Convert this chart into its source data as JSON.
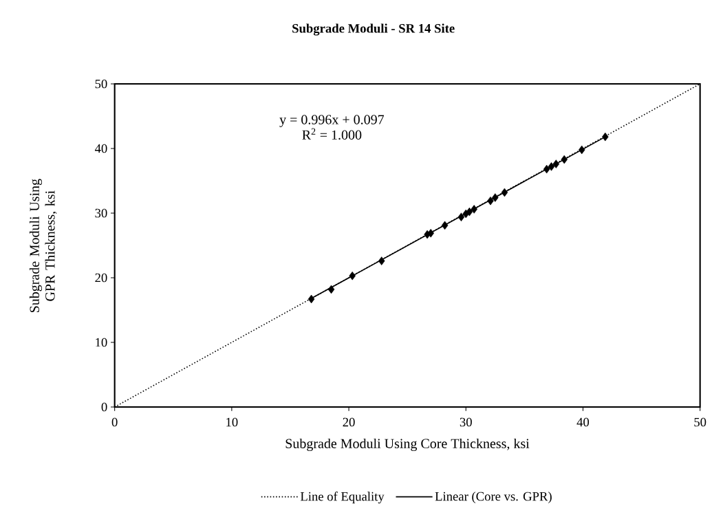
{
  "chart_data": {
    "type": "scatter",
    "title": "Subgrade Moduli - SR 14 Site",
    "xlabel": "Subgrade Moduli Using Core Thickness, ksi",
    "ylabel": "Subgrade Moduli Using GPR Thickness, ksi",
    "annotations": [
      "y = 0.996x + 0.097",
      "R$^{2}$ = 1.000"
    ],
    "xlim": [
      0,
      50
    ],
    "ylim": [
      0,
      50
    ],
    "xticks": [
      0,
      10,
      20,
      30,
      40,
      50
    ],
    "yticks": [
      0,
      10,
      20,
      30,
      40,
      50
    ],
    "legend": "bottom",
    "grid": false,
    "series": [
      {
        "name": "Line of Equality",
        "type": "line",
        "color": "#000000",
        "line_style": "dotted",
        "marker": "none",
        "x": [
          0,
          50
        ],
        "values": [
          0,
          50
        ]
      },
      {
        "name": "Linear (Core vs. GPR)",
        "type": "line",
        "color": "#000000",
        "line_style": "solid",
        "marker": "none",
        "x": [
          16.8,
          41.9
        ],
        "values": [
          16.8,
          41.8
        ]
      },
      {
        "color": "#000000",
        "marker": "diamond",
        "x": [
          16.8,
          18.5,
          20.3,
          22.8,
          26.7,
          27.0,
          28.2,
          29.6,
          30.0,
          30.3,
          30.7,
          32.1,
          32.5,
          33.3,
          36.9,
          37.3,
          37.7,
          38.4,
          39.9,
          41.9
        ],
        "values": [
          16.7,
          18.2,
          20.3,
          22.6,
          26.7,
          26.9,
          28.1,
          29.4,
          29.9,
          30.2,
          30.6,
          31.9,
          32.4,
          33.2,
          36.8,
          37.2,
          37.6,
          38.3,
          39.8,
          41.8
        ]
      }
    ]
  }
}
